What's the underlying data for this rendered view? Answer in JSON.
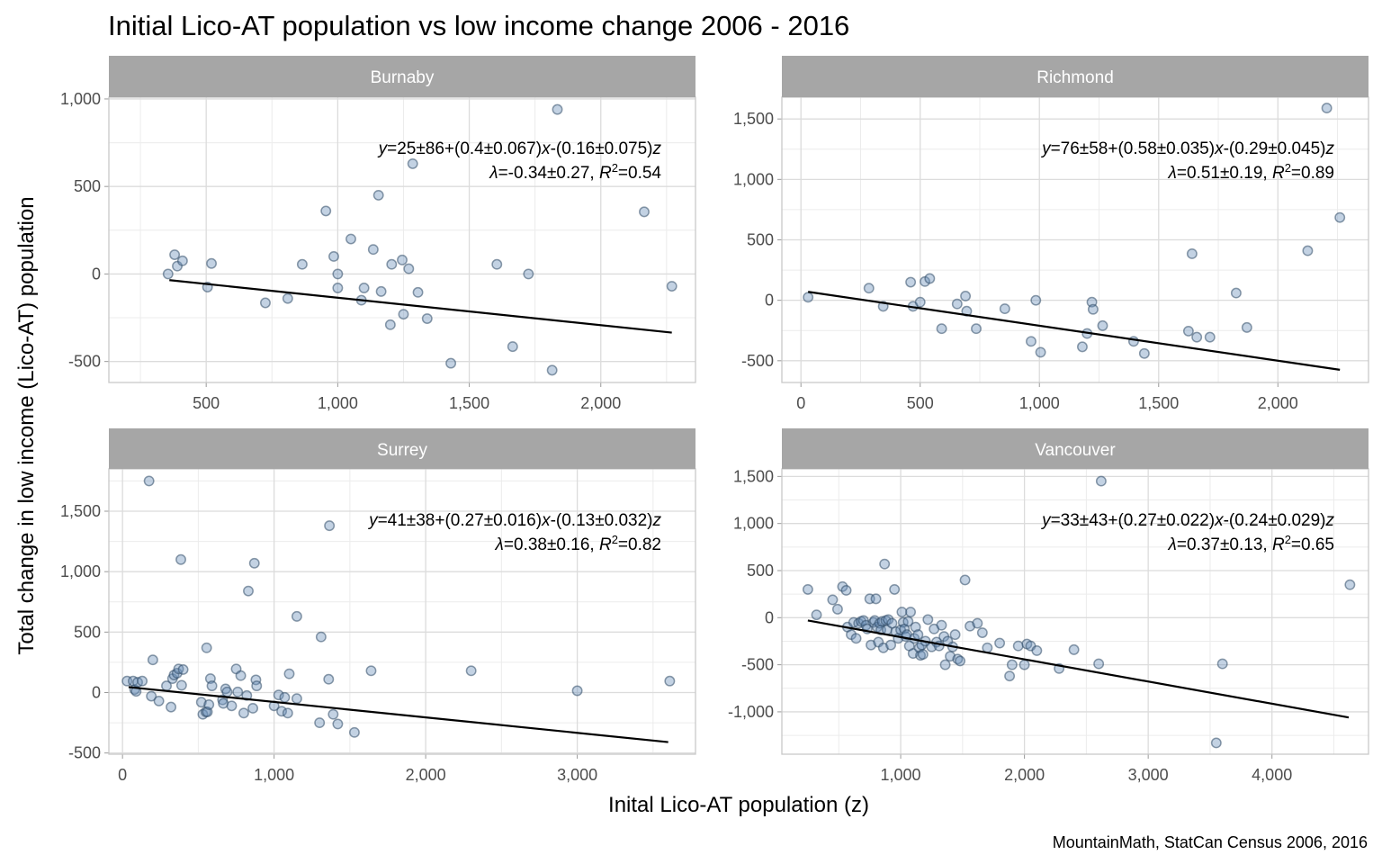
{
  "chart_data": {
    "type": "scatter",
    "title": "Initial Lico-AT population vs low income change 2006 - 2016",
    "xlabel": "Inital Lico-AT population (z)",
    "ylabel": "Total change in low income (Lico-AT) population",
    "caption": "MountainMath, StatCan Census 2006, 2016",
    "grid": true,
    "point_color": "#6a8fb8",
    "line_color": "#000000",
    "strip_color": "#a6a6a6",
    "panels": [
      {
        "name": "Burnaby",
        "xlim": [
          130,
          2360
        ],
        "ylim": [
          -620,
          1010
        ],
        "x_ticks": [
          500,
          1000,
          1500,
          2000
        ],
        "x_tick_labels": [
          "500",
          "1,000",
          "1,500",
          "2,000"
        ],
        "y_ticks": [
          -500,
          0,
          500,
          1000
        ],
        "y_tick_labels": [
          "-500",
          "0",
          "500",
          "1,000"
        ],
        "equation": {
          "y": "25±86+(0.4±0.067)",
          "x": "-(0.16±0.075)",
          "lambda": "=-0.34±0.27, ",
          "r2": "=0.54"
        },
        "fit": {
          "x": [
            360,
            2270
          ],
          "y": [
            -35,
            -335
          ]
        },
        "points": [
          [
            355,
            0
          ],
          [
            380,
            110
          ],
          [
            390,
            45
          ],
          [
            410,
            75
          ],
          [
            505,
            -75
          ],
          [
            520,
            60
          ],
          [
            725,
            -165
          ],
          [
            810,
            -140
          ],
          [
            865,
            55
          ],
          [
            955,
            360
          ],
          [
            985,
            100
          ],
          [
            1000,
            0
          ],
          [
            1000,
            -80
          ],
          [
            1050,
            200
          ],
          [
            1090,
            -150
          ],
          [
            1100,
            -80
          ],
          [
            1135,
            140
          ],
          [
            1155,
            450
          ],
          [
            1165,
            -100
          ],
          [
            1200,
            -290
          ],
          [
            1205,
            55
          ],
          [
            1245,
            80
          ],
          [
            1250,
            -230
          ],
          [
            1270,
            30
          ],
          [
            1285,
            630
          ],
          [
            1305,
            -105
          ],
          [
            1340,
            -255
          ],
          [
            1430,
            -510
          ],
          [
            1605,
            55
          ],
          [
            1665,
            -415
          ],
          [
            1725,
            0
          ],
          [
            1815,
            -550
          ],
          [
            1835,
            940
          ],
          [
            2165,
            355
          ],
          [
            2270,
            -70
          ]
        ]
      },
      {
        "name": "Richmond",
        "xlim": [
          -80,
          2380
        ],
        "ylim": [
          -680,
          1680
        ],
        "x_ticks": [
          0,
          500,
          1000,
          1500,
          2000
        ],
        "x_tick_labels": [
          "0",
          "500",
          "1,000",
          "1,500",
          "2,000"
        ],
        "y_ticks": [
          -500,
          0,
          500,
          1000,
          1500
        ],
        "y_tick_labels": [
          "-500",
          "0",
          "500",
          "1,000",
          "1,500"
        ],
        "equation": {
          "y": "76±58+(0.58±0.035)",
          "x": "-(0.29±0.045)",
          "lambda": "=0.51±0.19, ",
          "r2": "=0.89"
        },
        "fit": {
          "x": [
            30,
            2260
          ],
          "y": [
            70,
            -575
          ]
        },
        "points": [
          [
            30,
            25
          ],
          [
            285,
            100
          ],
          [
            345,
            -50
          ],
          [
            460,
            150
          ],
          [
            470,
            -50
          ],
          [
            500,
            -15
          ],
          [
            520,
            155
          ],
          [
            540,
            180
          ],
          [
            590,
            -235
          ],
          [
            655,
            -30
          ],
          [
            690,
            35
          ],
          [
            695,
            -90
          ],
          [
            735,
            -235
          ],
          [
            855,
            -70
          ],
          [
            965,
            -340
          ],
          [
            985,
            0
          ],
          [
            1005,
            -430
          ],
          [
            1180,
            -385
          ],
          [
            1200,
            -275
          ],
          [
            1220,
            -15
          ],
          [
            1225,
            -75
          ],
          [
            1265,
            -210
          ],
          [
            1395,
            -340
          ],
          [
            1440,
            -440
          ],
          [
            1625,
            -255
          ],
          [
            1640,
            385
          ],
          [
            1660,
            -305
          ],
          [
            1715,
            -305
          ],
          [
            1825,
            60
          ],
          [
            1870,
            -225
          ],
          [
            2125,
            410
          ],
          [
            2205,
            1590
          ],
          [
            2260,
            685
          ]
        ]
      },
      {
        "name": "Surrey",
        "xlim": [
          -90,
          3780
        ],
        "ylim": [
          -510,
          1850
        ],
        "x_ticks": [
          0,
          1000,
          2000,
          3000
        ],
        "x_tick_labels": [
          "0",
          "1,000",
          "2,000",
          "3,000"
        ],
        "y_ticks": [
          -500,
          0,
          500,
          1000,
          1500
        ],
        "y_tick_labels": [
          "-500",
          "0",
          "500",
          "1,000",
          "1,500"
        ],
        "equation": {
          "y": "41±38+(0.27±0.016)",
          "x": "-(0.13±0.032)",
          "lambda": "=0.38±0.16, ",
          "r2": "=0.82"
        },
        "fit": {
          "x": [
            40,
            3600
          ],
          "y": [
            45,
            -410
          ]
        },
        "points": [
          [
            30,
            95
          ],
          [
            70,
            95
          ],
          [
            80,
            25
          ],
          [
            90,
            10
          ],
          [
            100,
            85
          ],
          [
            130,
            95
          ],
          [
            175,
            1750
          ],
          [
            190,
            -30
          ],
          [
            200,
            270
          ],
          [
            240,
            -70
          ],
          [
            290,
            55
          ],
          [
            320,
            -120
          ],
          [
            330,
            115
          ],
          [
            340,
            145
          ],
          [
            360,
            160
          ],
          [
            370,
            195
          ],
          [
            385,
            1100
          ],
          [
            390,
            60
          ],
          [
            400,
            190
          ],
          [
            520,
            -80
          ],
          [
            530,
            -180
          ],
          [
            550,
            -160
          ],
          [
            555,
            370
          ],
          [
            560,
            -160
          ],
          [
            570,
            -100
          ],
          [
            580,
            115
          ],
          [
            590,
            55
          ],
          [
            660,
            -60
          ],
          [
            665,
            -90
          ],
          [
            680,
            30
          ],
          [
            690,
            5
          ],
          [
            720,
            -110
          ],
          [
            750,
            195
          ],
          [
            760,
            5
          ],
          [
            780,
            140
          ],
          [
            800,
            -170
          ],
          [
            820,
            -25
          ],
          [
            830,
            840
          ],
          [
            860,
            -130
          ],
          [
            870,
            1070
          ],
          [
            880,
            105
          ],
          [
            885,
            55
          ],
          [
            1000,
            -110
          ],
          [
            1030,
            -20
          ],
          [
            1050,
            -155
          ],
          [
            1070,
            -40
          ],
          [
            1090,
            -170
          ],
          [
            1100,
            155
          ],
          [
            1150,
            -50
          ],
          [
            1150,
            630
          ],
          [
            1300,
            -250
          ],
          [
            1310,
            460
          ],
          [
            1360,
            110
          ],
          [
            1365,
            1380
          ],
          [
            1390,
            -180
          ],
          [
            1420,
            -260
          ],
          [
            1530,
            -330
          ],
          [
            1640,
            180
          ],
          [
            2300,
            180
          ],
          [
            3000,
            15
          ],
          [
            3610,
            95
          ]
        ]
      },
      {
        "name": "Vancouver",
        "xlim": [
          40,
          4780
        ],
        "ylim": [
          -1450,
          1580
        ],
        "x_ticks": [
          1000,
          2000,
          3000,
          4000
        ],
        "x_tick_labels": [
          "1,000",
          "2,000",
          "3,000",
          "4,000"
        ],
        "y_ticks": [
          -1000,
          -500,
          0,
          500,
          1000,
          1500
        ],
        "y_tick_labels": [
          "-1,000",
          "-500",
          "0",
          "500",
          "1,000",
          "1,500"
        ],
        "equation": {
          "y": "33±43+(0.27±0.022)",
          "x": "-(0.24±0.029)",
          "lambda": "=0.37±0.13, ",
          "r2": "=0.65"
        },
        "fit": {
          "x": [
            250,
            4620
          ],
          "y": [
            -30,
            -1060
          ]
        },
        "points": [
          [
            250,
            300
          ],
          [
            320,
            30
          ],
          [
            450,
            190
          ],
          [
            490,
            90
          ],
          [
            530,
            330
          ],
          [
            560,
            290
          ],
          [
            570,
            -100
          ],
          [
            600,
            -180
          ],
          [
            620,
            -50
          ],
          [
            640,
            -220
          ],
          [
            660,
            -60
          ],
          [
            680,
            -40
          ],
          [
            700,
            -30
          ],
          [
            720,
            -80
          ],
          [
            730,
            -120
          ],
          [
            750,
            200
          ],
          [
            760,
            -290
          ],
          [
            780,
            -50
          ],
          [
            790,
            -30
          ],
          [
            800,
            200
          ],
          [
            810,
            -100
          ],
          [
            820,
            -260
          ],
          [
            830,
            -60
          ],
          [
            840,
            -130
          ],
          [
            850,
            -40
          ],
          [
            860,
            -320
          ],
          [
            870,
            570
          ],
          [
            880,
            -30
          ],
          [
            890,
            -130
          ],
          [
            900,
            -20
          ],
          [
            920,
            -290
          ],
          [
            930,
            -60
          ],
          [
            950,
            300
          ],
          [
            960,
            -150
          ],
          [
            980,
            -220
          ],
          [
            1000,
            -130
          ],
          [
            1010,
            60
          ],
          [
            1020,
            -50
          ],
          [
            1030,
            -120
          ],
          [
            1040,
            -200
          ],
          [
            1050,
            -180
          ],
          [
            1060,
            -40
          ],
          [
            1070,
            -300
          ],
          [
            1080,
            60
          ],
          [
            1100,
            -380
          ],
          [
            1110,
            -220
          ],
          [
            1120,
            -100
          ],
          [
            1140,
            -180
          ],
          [
            1150,
            -320
          ],
          [
            1160,
            -400
          ],
          [
            1170,
            -290
          ],
          [
            1180,
            -390
          ],
          [
            1200,
            -250
          ],
          [
            1220,
            -20
          ],
          [
            1250,
            -310
          ],
          [
            1270,
            -120
          ],
          [
            1290,
            -260
          ],
          [
            1310,
            -300
          ],
          [
            1330,
            -80
          ],
          [
            1350,
            -200
          ],
          [
            1360,
            -500
          ],
          [
            1380,
            -250
          ],
          [
            1400,
            -410
          ],
          [
            1420,
            -310
          ],
          [
            1440,
            -180
          ],
          [
            1460,
            -440
          ],
          [
            1480,
            -460
          ],
          [
            1520,
            400
          ],
          [
            1560,
            -90
          ],
          [
            1620,
            -60
          ],
          [
            1660,
            -160
          ],
          [
            1700,
            -320
          ],
          [
            1800,
            -270
          ],
          [
            1880,
            -620
          ],
          [
            1900,
            -500
          ],
          [
            1950,
            -300
          ],
          [
            2000,
            -500
          ],
          [
            2020,
            -280
          ],
          [
            2050,
            -300
          ],
          [
            2100,
            -350
          ],
          [
            2280,
            -540
          ],
          [
            2400,
            -340
          ],
          [
            2600,
            -490
          ],
          [
            2620,
            1450
          ],
          [
            3550,
            -1330
          ],
          [
            3600,
            -490
          ],
          [
            4630,
            350
          ]
        ]
      }
    ]
  }
}
